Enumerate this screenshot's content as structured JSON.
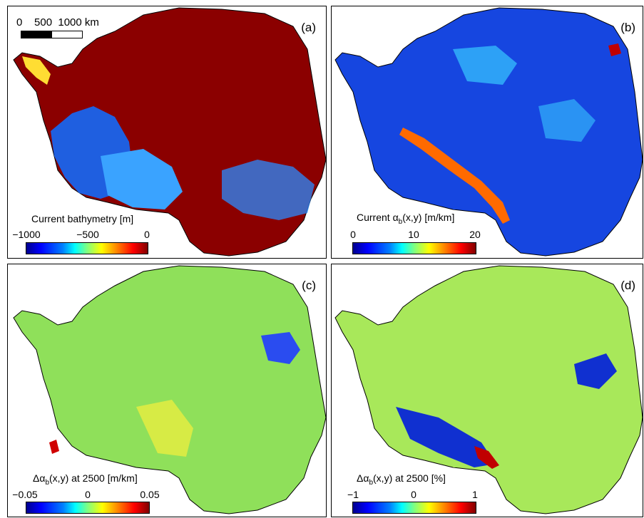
{
  "panels": [
    {
      "label": "(a)",
      "colorbar": {
        "title": "Current bathymetry [m]",
        "ticks": [
          "−1000",
          "−500",
          "0"
        ]
      },
      "scalebar": {
        "text": "0    500  1000 km"
      },
      "base_color": "#8b0000"
    },
    {
      "label": "(b)",
      "colorbar": {
        "title": "Current αb(x,y) [m/km]",
        "title_main": "Current α",
        "title_sub": "b",
        "title_tail": "(x,y) [m/km]",
        "ticks": [
          "0",
          "10",
          "20"
        ]
      },
      "base_color": "#1646e0"
    },
    {
      "label": "(c)",
      "colorbar": {
        "title_main": "Δα",
        "title_sub": "b",
        "title_tail": "(x,y) at 2500 [m/km]",
        "ticks": [
          "−0.05",
          "0",
          "0.05"
        ]
      },
      "base_color": "#8fe05a"
    },
    {
      "label": "(d)",
      "colorbar": {
        "title_main": "Δα",
        "title_sub": "b",
        "title_tail": "(x,y) at 2500 [%]",
        "ticks": [
          "−1",
          "0",
          "1"
        ]
      },
      "base_color": "#a8e85a"
    }
  ]
}
